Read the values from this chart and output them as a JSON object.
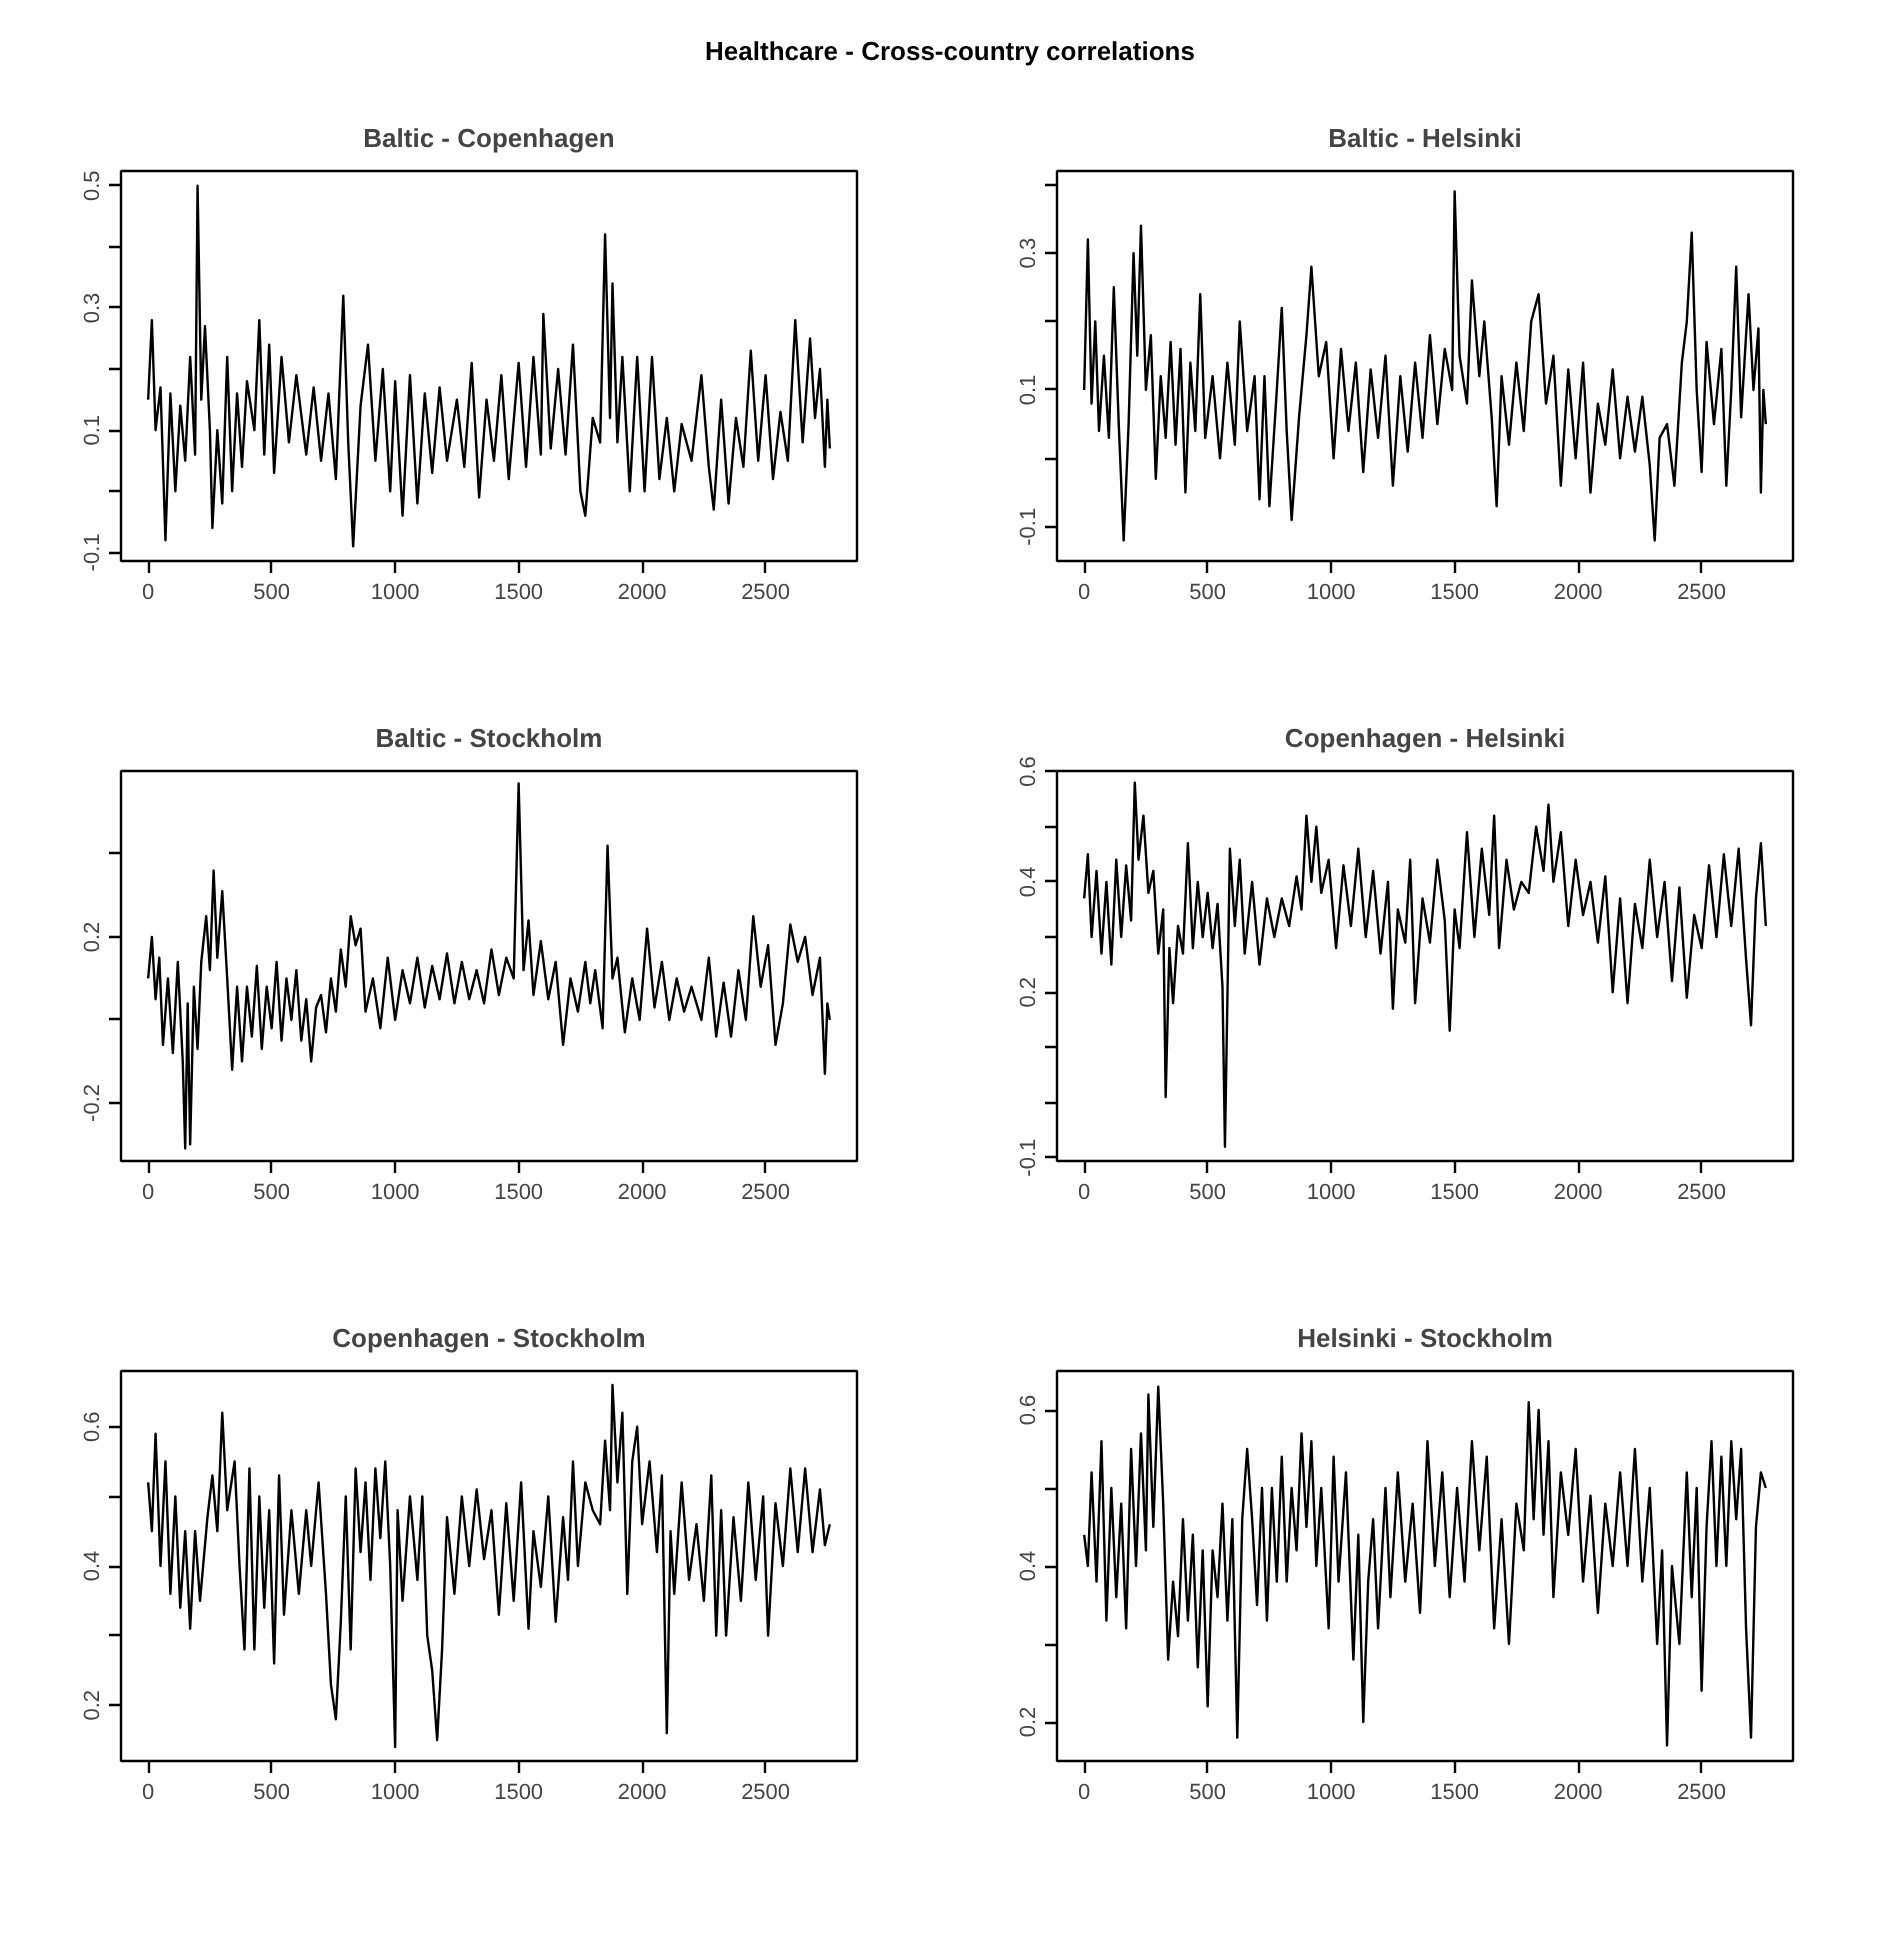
{
  "chart_data": [
    {
      "type": "line",
      "annotations": [
        "Healthcare - Cross-country correlations"
      ],
      "title": "Baltic - Copenhagen",
      "color": "#000000",
      "xlim": [
        -110,
        2870
      ],
      "ylim": [
        -0.114,
        0.524
      ],
      "xticks": [
        0,
        500,
        1000,
        1500,
        2000,
        2500
      ],
      "yticks": [
        -0.1,
        {
          "value": 0,
          "label": null
        },
        0.1,
        {
          "value": 0.2,
          "label": null
        },
        0.3,
        {
          "value": 0.4,
          "label": null
        },
        0.5
      ],
      "x": [
        0,
        15,
        30,
        50,
        70,
        90,
        110,
        130,
        150,
        170,
        190,
        200,
        215,
        230,
        250,
        260,
        280,
        300,
        320,
        340,
        360,
        380,
        400,
        430,
        450,
        470,
        490,
        510,
        540,
        570,
        600,
        640,
        670,
        700,
        730,
        760,
        790,
        810,
        830,
        860,
        890,
        920,
        950,
        980,
        1000,
        1030,
        1060,
        1090,
        1120,
        1150,
        1180,
        1210,
        1250,
        1280,
        1310,
        1340,
        1370,
        1400,
        1430,
        1460,
        1500,
        1530,
        1560,
        1590,
        1600,
        1630,
        1660,
        1690,
        1720,
        1750,
        1770,
        1800,
        1830,
        1850,
        1870,
        1880,
        1900,
        1920,
        1950,
        1980,
        2010,
        2040,
        2070,
        2100,
        2130,
        2160,
        2200,
        2240,
        2270,
        2290,
        2320,
        2350,
        2380,
        2410,
        2440,
        2470,
        2500,
        2530,
        2560,
        2590,
        2620,
        2650,
        2680,
        2700,
        2720,
        2740,
        2750,
        2760
      ],
      "values": [
        0.15,
        0.28,
        0.1,
        0.17,
        -0.08,
        0.16,
        0.0,
        0.14,
        0.05,
        0.22,
        0.06,
        0.5,
        0.15,
        0.27,
        0.1,
        -0.06,
        0.1,
        -0.02,
        0.22,
        0.0,
        0.16,
        0.04,
        0.18,
        0.1,
        0.28,
        0.06,
        0.24,
        0.03,
        0.22,
        0.08,
        0.19,
        0.06,
        0.17,
        0.05,
        0.16,
        0.02,
        0.32,
        0.08,
        -0.09,
        0.14,
        0.24,
        0.05,
        0.2,
        0.0,
        0.18,
        -0.04,
        0.19,
        -0.02,
        0.16,
        0.03,
        0.17,
        0.05,
        0.15,
        0.04,
        0.21,
        -0.01,
        0.15,
        0.05,
        0.19,
        0.02,
        0.21,
        0.04,
        0.22,
        0.06,
        0.29,
        0.07,
        0.2,
        0.06,
        0.24,
        0.0,
        -0.04,
        0.12,
        0.08,
        0.42,
        0.12,
        0.34,
        0.08,
        0.22,
        0.0,
        0.22,
        0.0,
        0.22,
        0.02,
        0.12,
        0.0,
        0.11,
        0.05,
        0.19,
        0.04,
        -0.03,
        0.15,
        -0.02,
        0.12,
        0.04,
        0.23,
        0.05,
        0.19,
        0.02,
        0.13,
        0.05,
        0.28,
        0.08,
        0.25,
        0.12,
        0.2,
        0.04,
        0.15,
        0.07
      ]
    },
    {
      "type": "line",
      "title": "Baltic - Helsinki",
      "color": "#000000",
      "xlim": [
        -110,
        2870
      ],
      "ylim": [
        -0.15,
        0.42
      ],
      "xticks": [
        0,
        500,
        1000,
        1500,
        2000,
        2500
      ],
      "yticks": [
        -0.1,
        {
          "value": 0,
          "label": null
        },
        0.1,
        {
          "value": 0.2,
          "label": null
        },
        0.3,
        {
          "value": 0.4,
          "label": null
        }
      ],
      "x": [
        0,
        15,
        30,
        45,
        60,
        80,
        100,
        120,
        140,
        160,
        180,
        200,
        215,
        230,
        250,
        270,
        290,
        310,
        330,
        350,
        370,
        390,
        410,
        430,
        450,
        470,
        490,
        520,
        550,
        580,
        610,
        630,
        660,
        690,
        710,
        730,
        750,
        780,
        800,
        820,
        840,
        870,
        900,
        920,
        950,
        980,
        1010,
        1040,
        1070,
        1100,
        1130,
        1160,
        1190,
        1220,
        1250,
        1280,
        1310,
        1340,
        1370,
        1400,
        1430,
        1460,
        1490,
        1500,
        1520,
        1550,
        1570,
        1600,
        1620,
        1650,
        1670,
        1690,
        1720,
        1750,
        1780,
        1810,
        1840,
        1870,
        1900,
        1930,
        1960,
        1990,
        2020,
        2050,
        2080,
        2110,
        2140,
        2170,
        2200,
        2230,
        2260,
        2290,
        2310,
        2330,
        2360,
        2390,
        2420,
        2440,
        2460,
        2480,
        2500,
        2520,
        2550,
        2580,
        2600,
        2620,
        2640,
        2660,
        2690,
        2710,
        2730,
        2740,
        2750,
        2760
      ],
      "values": [
        0.1,
        0.32,
        0.08,
        0.2,
        0.04,
        0.15,
        0.03,
        0.25,
        0.05,
        -0.12,
        0.05,
        0.3,
        0.15,
        0.34,
        0.1,
        0.18,
        -0.03,
        0.12,
        0.03,
        0.17,
        0.02,
        0.16,
        -0.05,
        0.14,
        0.04,
        0.24,
        0.03,
        0.12,
        0.0,
        0.14,
        0.02,
        0.2,
        0.04,
        0.12,
        -0.06,
        0.12,
        -0.07,
        0.1,
        0.22,
        0.04,
        -0.09,
        0.06,
        0.18,
        0.28,
        0.12,
        0.17,
        0.0,
        0.16,
        0.04,
        0.14,
        -0.02,
        0.13,
        0.03,
        0.15,
        -0.04,
        0.12,
        0.01,
        0.14,
        0.03,
        0.18,
        0.05,
        0.16,
        0.1,
        0.39,
        0.15,
        0.08,
        0.26,
        0.12,
        0.2,
        0.06,
        -0.07,
        0.12,
        0.02,
        0.14,
        0.04,
        0.2,
        0.24,
        0.08,
        0.15,
        -0.04,
        0.13,
        0.0,
        0.14,
        -0.05,
        0.08,
        0.02,
        0.13,
        0.0,
        0.09,
        0.01,
        0.09,
        -0.01,
        -0.12,
        0.03,
        0.05,
        -0.04,
        0.14,
        0.2,
        0.33,
        0.1,
        -0.02,
        0.17,
        0.05,
        0.16,
        -0.04,
        0.1,
        0.28,
        0.06,
        0.24,
        0.1,
        0.19,
        -0.05,
        0.1,
        0.05
      ]
    },
    {
      "type": "line",
      "title": "Baltic - Stockholm",
      "color": "#000000",
      "xlim": [
        -110,
        2870
      ],
      "ylim": [
        -0.34,
        0.6
      ],
      "xticks": [
        0,
        500,
        1000,
        1500,
        2000,
        2500
      ],
      "yticks": [
        -0.2,
        {
          "value": 0,
          "label": null
        },
        0.2,
        {
          "value": 0.4,
          "label": null
        }
      ],
      "x": [
        0,
        15,
        30,
        45,
        60,
        80,
        100,
        120,
        140,
        150,
        160,
        170,
        185,
        200,
        215,
        235,
        250,
        265,
        280,
        300,
        320,
        340,
        360,
        380,
        400,
        420,
        440,
        460,
        480,
        500,
        520,
        540,
        560,
        580,
        600,
        620,
        640,
        660,
        680,
        700,
        720,
        740,
        760,
        780,
        800,
        820,
        840,
        860,
        880,
        910,
        940,
        970,
        1000,
        1030,
        1060,
        1090,
        1120,
        1150,
        1180,
        1210,
        1240,
        1270,
        1300,
        1330,
        1360,
        1390,
        1420,
        1450,
        1480,
        1500,
        1520,
        1540,
        1560,
        1590,
        1620,
        1650,
        1680,
        1710,
        1740,
        1770,
        1790,
        1810,
        1840,
        1860,
        1880,
        1900,
        1930,
        1960,
        1990,
        2020,
        2050,
        2080,
        2110,
        2140,
        2170,
        2200,
        2240,
        2270,
        2300,
        2330,
        2360,
        2390,
        2420,
        2450,
        2480,
        2510,
        2540,
        2570,
        2600,
        2630,
        2660,
        2690,
        2720,
        2740,
        2750,
        2760
      ],
      "values": [
        0.1,
        0.2,
        0.05,
        0.15,
        -0.06,
        0.1,
        -0.08,
        0.14,
        -0.1,
        -0.31,
        0.04,
        -0.3,
        0.08,
        -0.07,
        0.14,
        0.25,
        0.12,
        0.36,
        0.15,
        0.31,
        0.1,
        -0.12,
        0.08,
        -0.1,
        0.08,
        -0.04,
        0.13,
        -0.07,
        0.08,
        -0.02,
        0.14,
        -0.05,
        0.1,
        0.0,
        0.12,
        -0.05,
        0.05,
        -0.1,
        0.03,
        0.06,
        -0.03,
        0.1,
        0.02,
        0.17,
        0.08,
        0.25,
        0.18,
        0.22,
        0.02,
        0.1,
        -0.02,
        0.15,
        0.0,
        0.12,
        0.04,
        0.15,
        0.03,
        0.13,
        0.05,
        0.16,
        0.04,
        0.14,
        0.05,
        0.12,
        0.04,
        0.17,
        0.06,
        0.15,
        0.1,
        0.57,
        0.12,
        0.24,
        0.06,
        0.19,
        0.05,
        0.14,
        -0.06,
        0.1,
        0.02,
        0.14,
        0.04,
        0.12,
        -0.02,
        0.42,
        0.1,
        0.15,
        -0.03,
        0.1,
        0.0,
        0.22,
        0.03,
        0.14,
        0.0,
        0.1,
        0.02,
        0.08,
        0.0,
        0.15,
        -0.04,
        0.09,
        -0.04,
        0.12,
        0.0,
        0.25,
        0.08,
        0.18,
        -0.06,
        0.04,
        0.23,
        0.14,
        0.2,
        0.06,
        0.15,
        -0.13,
        0.04,
        0.0
      ]
    },
    {
      "type": "line",
      "title": "Copenhagen - Helsinki",
      "color": "#000000",
      "xlim": [
        -110,
        2870
      ],
      "ylim": [
        -0.106,
        0.601
      ],
      "xticks": [
        0,
        500,
        1000,
        1500,
        2000,
        2500
      ],
      "yticks": [
        -0.1,
        {
          "value": 0,
          "label": null
        },
        {
          "value": 0.1,
          "label": null
        },
        0.2,
        {
          "value": 0.3,
          "label": null
        },
        0.4,
        {
          "value": 0.5,
          "label": null
        },
        0.6
      ],
      "x": [
        0,
        15,
        30,
        50,
        70,
        90,
        110,
        130,
        150,
        170,
        190,
        205,
        220,
        240,
        260,
        280,
        300,
        320,
        330,
        345,
        360,
        380,
        400,
        420,
        440,
        460,
        480,
        500,
        520,
        540,
        560,
        570,
        580,
        590,
        610,
        630,
        650,
        680,
        710,
        740,
        770,
        800,
        830,
        860,
        880,
        900,
        920,
        940,
        960,
        990,
        1020,
        1050,
        1080,
        1110,
        1140,
        1170,
        1200,
        1230,
        1250,
        1270,
        1300,
        1320,
        1340,
        1370,
        1400,
        1430,
        1460,
        1480,
        1500,
        1520,
        1550,
        1580,
        1610,
        1640,
        1660,
        1680,
        1710,
        1740,
        1770,
        1800,
        1830,
        1860,
        1880,
        1900,
        1930,
        1960,
        1990,
        2020,
        2050,
        2080,
        2110,
        2140,
        2170,
        2200,
        2230,
        2260,
        2290,
        2320,
        2350,
        2380,
        2410,
        2440,
        2470,
        2500,
        2530,
        2560,
        2590,
        2620,
        2650,
        2680,
        2700,
        2720,
        2740,
        2760
      ],
      "values": [
        0.37,
        0.45,
        0.3,
        0.42,
        0.27,
        0.4,
        0.25,
        0.44,
        0.3,
        0.43,
        0.33,
        0.58,
        0.44,
        0.52,
        0.38,
        0.42,
        0.27,
        0.35,
        0.01,
        0.28,
        0.18,
        0.32,
        0.27,
        0.47,
        0.28,
        0.4,
        0.3,
        0.38,
        0.28,
        0.36,
        0.21,
        -0.08,
        0.19,
        0.46,
        0.32,
        0.44,
        0.27,
        0.4,
        0.25,
        0.37,
        0.3,
        0.37,
        0.32,
        0.41,
        0.35,
        0.52,
        0.4,
        0.5,
        0.38,
        0.44,
        0.28,
        0.43,
        0.32,
        0.46,
        0.3,
        0.42,
        0.27,
        0.4,
        0.17,
        0.35,
        0.29,
        0.44,
        0.18,
        0.37,
        0.29,
        0.44,
        0.33,
        0.13,
        0.35,
        0.28,
        0.49,
        0.3,
        0.46,
        0.34,
        0.52,
        0.28,
        0.44,
        0.35,
        0.4,
        0.38,
        0.5,
        0.42,
        0.54,
        0.4,
        0.49,
        0.32,
        0.44,
        0.34,
        0.4,
        0.29,
        0.41,
        0.2,
        0.37,
        0.18,
        0.36,
        0.28,
        0.44,
        0.3,
        0.4,
        0.22,
        0.39,
        0.19,
        0.34,
        0.28,
        0.43,
        0.3,
        0.45,
        0.32,
        0.46,
        0.26,
        0.14,
        0.37,
        0.47,
        0.32
      ]
    },
    {
      "type": "line",
      "title": "Copenhagen - Stockholm",
      "color": "#000000",
      "xlim": [
        -110,
        2870
      ],
      "ylim": [
        0.12,
        0.68
      ],
      "xticks": [
        0,
        500,
        1000,
        1500,
        2000,
        2500
      ],
      "yticks": [
        0.2,
        {
          "value": 0.3,
          "label": null
        },
        0.4,
        {
          "value": 0.5,
          "label": null
        },
        0.6
      ],
      "x": [
        0,
        15,
        30,
        50,
        70,
        90,
        110,
        130,
        150,
        170,
        190,
        210,
        240,
        260,
        280,
        300,
        320,
        350,
        370,
        390,
        410,
        430,
        450,
        470,
        490,
        510,
        530,
        550,
        580,
        610,
        640,
        660,
        690,
        720,
        740,
        760,
        780,
        800,
        820,
        840,
        860,
        880,
        900,
        920,
        940,
        960,
        980,
        1000,
        1010,
        1030,
        1060,
        1090,
        1110,
        1130,
        1150,
        1170,
        1190,
        1210,
        1240,
        1270,
        1300,
        1330,
        1360,
        1390,
        1420,
        1450,
        1480,
        1510,
        1540,
        1560,
        1590,
        1620,
        1650,
        1680,
        1700,
        1720,
        1740,
        1770,
        1800,
        1830,
        1850,
        1870,
        1880,
        1900,
        1920,
        1940,
        1960,
        1980,
        2000,
        2030,
        2060,
        2080,
        2100,
        2115,
        2130,
        2160,
        2190,
        2220,
        2250,
        2280,
        2300,
        2320,
        2340,
        2370,
        2400,
        2430,
        2460,
        2490,
        2510,
        2540,
        2570,
        2600,
        2630,
        2660,
        2690,
        2720,
        2740,
        2760
      ],
      "values": [
        0.52,
        0.45,
        0.59,
        0.4,
        0.55,
        0.36,
        0.5,
        0.34,
        0.45,
        0.31,
        0.45,
        0.35,
        0.47,
        0.53,
        0.45,
        0.62,
        0.48,
        0.55,
        0.4,
        0.28,
        0.54,
        0.28,
        0.5,
        0.34,
        0.48,
        0.26,
        0.53,
        0.33,
        0.48,
        0.36,
        0.48,
        0.4,
        0.52,
        0.36,
        0.23,
        0.18,
        0.32,
        0.5,
        0.28,
        0.54,
        0.42,
        0.52,
        0.38,
        0.54,
        0.44,
        0.55,
        0.4,
        0.14,
        0.48,
        0.35,
        0.5,
        0.38,
        0.5,
        0.3,
        0.25,
        0.15,
        0.28,
        0.47,
        0.36,
        0.5,
        0.4,
        0.51,
        0.41,
        0.48,
        0.33,
        0.49,
        0.35,
        0.52,
        0.31,
        0.45,
        0.37,
        0.5,
        0.32,
        0.47,
        0.38,
        0.55,
        0.4,
        0.52,
        0.48,
        0.46,
        0.58,
        0.48,
        0.66,
        0.52,
        0.62,
        0.36,
        0.55,
        0.6,
        0.46,
        0.55,
        0.42,
        0.53,
        0.16,
        0.45,
        0.36,
        0.52,
        0.38,
        0.46,
        0.35,
        0.53,
        0.3,
        0.48,
        0.3,
        0.47,
        0.35,
        0.52,
        0.38,
        0.5,
        0.3,
        0.49,
        0.4,
        0.54,
        0.42,
        0.54,
        0.42,
        0.51,
        0.43,
        0.46
      ]
    },
    {
      "type": "line",
      "title": "Helsinki - Stockholm",
      "color": "#000000",
      "xlim": [
        -110,
        2870
      ],
      "ylim": [
        0.15,
        0.65
      ],
      "xticks": [
        0,
        500,
        1000,
        1500,
        2000,
        2500
      ],
      "yticks": [
        0.2,
        {
          "value": 0.3,
          "label": null
        },
        0.4,
        {
          "value": 0.5,
          "label": null
        },
        0.6
      ],
      "x": [
        0,
        15,
        30,
        50,
        70,
        90,
        110,
        130,
        150,
        170,
        190,
        210,
        230,
        250,
        260,
        280,
        300,
        320,
        340,
        360,
        380,
        400,
        420,
        440,
        460,
        480,
        500,
        520,
        540,
        560,
        580,
        600,
        620,
        640,
        660,
        680,
        700,
        720,
        740,
        760,
        780,
        800,
        820,
        840,
        860,
        880,
        900,
        920,
        940,
        960,
        990,
        1010,
        1030,
        1060,
        1090,
        1110,
        1130,
        1150,
        1170,
        1190,
        1220,
        1240,
        1270,
        1300,
        1330,
        1360,
        1390,
        1420,
        1450,
        1480,
        1510,
        1540,
        1570,
        1600,
        1630,
        1660,
        1690,
        1720,
        1750,
        1780,
        1800,
        1820,
        1840,
        1860,
        1880,
        1900,
        1930,
        1960,
        1990,
        2020,
        2050,
        2080,
        2110,
        2140,
        2170,
        2200,
        2230,
        2260,
        2290,
        2320,
        2340,
        2360,
        2380,
        2410,
        2440,
        2460,
        2480,
        2500,
        2520,
        2540,
        2560,
        2580,
        2600,
        2620,
        2640,
        2660,
        2680,
        2700,
        2720,
        2740,
        2760
      ],
      "values": [
        0.44,
        0.4,
        0.52,
        0.38,
        0.56,
        0.33,
        0.5,
        0.36,
        0.48,
        0.32,
        0.55,
        0.4,
        0.57,
        0.42,
        0.62,
        0.45,
        0.63,
        0.48,
        0.28,
        0.38,
        0.31,
        0.46,
        0.33,
        0.44,
        0.27,
        0.42,
        0.22,
        0.42,
        0.36,
        0.48,
        0.33,
        0.46,
        0.18,
        0.46,
        0.55,
        0.46,
        0.35,
        0.5,
        0.33,
        0.5,
        0.38,
        0.54,
        0.38,
        0.5,
        0.42,
        0.57,
        0.45,
        0.56,
        0.4,
        0.5,
        0.32,
        0.54,
        0.38,
        0.52,
        0.28,
        0.44,
        0.2,
        0.38,
        0.46,
        0.32,
        0.5,
        0.36,
        0.52,
        0.38,
        0.48,
        0.34,
        0.56,
        0.4,
        0.52,
        0.36,
        0.5,
        0.38,
        0.56,
        0.42,
        0.54,
        0.32,
        0.46,
        0.3,
        0.48,
        0.42,
        0.61,
        0.46,
        0.6,
        0.44,
        0.56,
        0.36,
        0.52,
        0.44,
        0.55,
        0.38,
        0.49,
        0.34,
        0.48,
        0.4,
        0.52,
        0.4,
        0.55,
        0.38,
        0.5,
        0.3,
        0.42,
        0.17,
        0.4,
        0.3,
        0.52,
        0.36,
        0.5,
        0.24,
        0.45,
        0.56,
        0.4,
        0.54,
        0.4,
        0.56,
        0.46,
        0.55,
        0.32,
        0.18,
        0.45,
        0.52,
        0.5
      ]
    }
  ]
}
